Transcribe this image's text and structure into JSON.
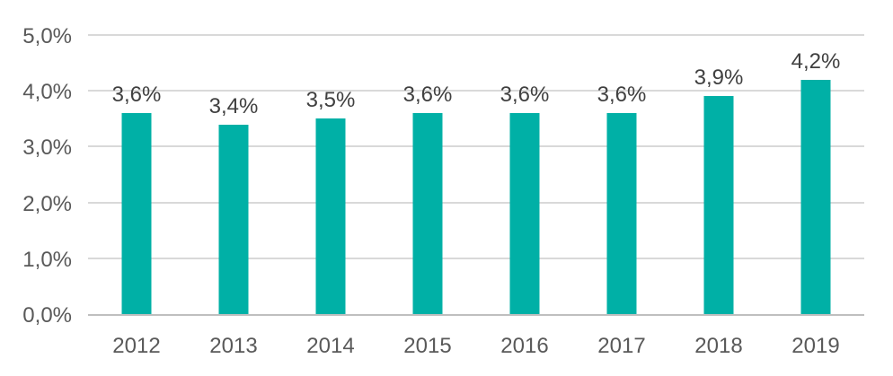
{
  "chart_data": {
    "type": "bar",
    "title": "",
    "xlabel": "",
    "ylabel": "",
    "categories": [
      "2012",
      "2013",
      "2014",
      "2015",
      "2016",
      "2017",
      "2018",
      "2019"
    ],
    "values": [
      3.6,
      3.4,
      3.5,
      3.6,
      3.6,
      3.6,
      3.9,
      4.2
    ],
    "data_labels": [
      "3,6%",
      "3,4%",
      "3,5%",
      "3,6%",
      "3,6%",
      "3,6%",
      "3,9%",
      "4,2%"
    ],
    "y_ticks": [
      "0,0%",
      "1,0%",
      "2,0%",
      "3,0%",
      "4,0%",
      "5,0%"
    ],
    "y_tick_values": [
      0,
      1,
      2,
      3,
      4,
      5
    ],
    "ylim": [
      0,
      5
    ],
    "grid": true,
    "legend": false,
    "decimal_separator": ",",
    "colors": {
      "bar": "#00b0a6",
      "gridline": "#d9d9d9",
      "axis_line": "#bfbfbf",
      "tick_text": "#595959",
      "data_label_text": "#404040",
      "background": "#ffffff"
    }
  }
}
